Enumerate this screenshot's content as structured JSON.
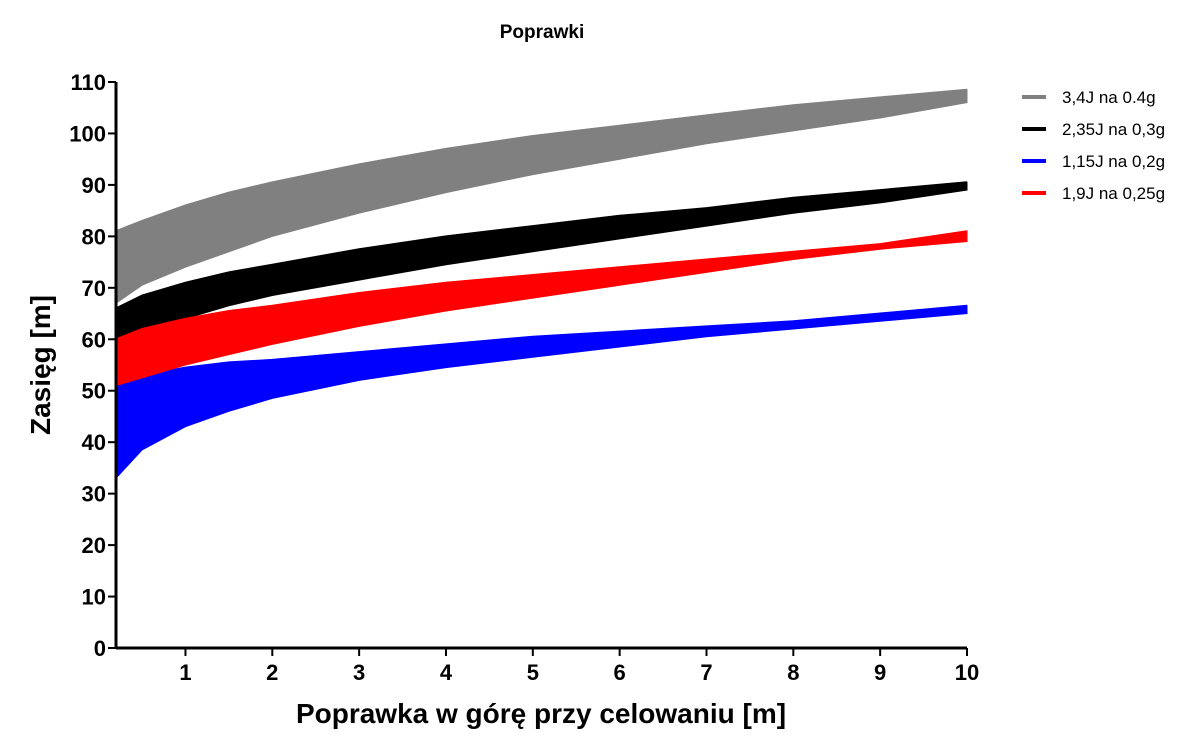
{
  "chart_data": {
    "type": "area",
    "title": "Poprawki",
    "xlabel": "Poprawka w górę przy celowaniu [m]",
    "ylabel": "Zasięg [m]",
    "xlim": [
      0.2,
      10
    ],
    "ylim": [
      0,
      110
    ],
    "x_ticks": [
      1,
      2,
      3,
      4,
      5,
      6,
      7,
      8,
      9,
      10
    ],
    "y_ticks": [
      0,
      10,
      20,
      30,
      40,
      50,
      60,
      70,
      80,
      90,
      100,
      110
    ],
    "grid": false,
    "legend_position": "top-right",
    "x": [
      0.2,
      0.5,
      1,
      1.5,
      2,
      3,
      4,
      5,
      6,
      7,
      8,
      9,
      10
    ],
    "series": [
      {
        "name": "3,4J na 0.4g",
        "color": "#808080",
        "upper": [
          81,
          83,
          86,
          88.5,
          90.5,
          94,
          97,
          99.5,
          101.5,
          103.5,
          105.5,
          107,
          108.5
        ],
        "lower": [
          67,
          70.5,
          74,
          77,
          80,
          84.5,
          88.5,
          92,
          95,
          98,
          100.5,
          103,
          106
        ]
      },
      {
        "name": "2,35J na 0,3g",
        "color": "#000000",
        "upper": [
          66,
          68.5,
          71,
          73,
          74.5,
          77.5,
          80,
          82,
          84,
          85.5,
          87.5,
          89,
          90.5
        ],
        "lower": [
          57,
          60.5,
          64,
          66.5,
          68.5,
          71.5,
          74.5,
          77,
          79.5,
          82,
          84.5,
          86.5,
          89
        ]
      },
      {
        "name": "1,15J na 0,2g",
        "color": "#0000ff",
        "upper": [
          52,
          53,
          54.5,
          55.5,
          56,
          57.5,
          59,
          60.5,
          61.5,
          62.5,
          63.5,
          65,
          66.5
        ],
        "lower": [
          33,
          38.5,
          43,
          46,
          48.5,
          52,
          54.5,
          56.5,
          58.5,
          60.5,
          62,
          63.5,
          65
        ]
      },
      {
        "name": "1,9J na 0,25g",
        "color": "#ff0000",
        "upper": [
          60,
          62,
          64,
          65.5,
          66.5,
          69,
          71,
          72.5,
          74,
          75.5,
          77,
          78.5,
          81
        ],
        "lower": [
          51,
          52.5,
          55,
          57,
          59,
          62.5,
          65.5,
          68,
          70.5,
          73,
          75.5,
          77.5,
          79
        ]
      }
    ]
  }
}
